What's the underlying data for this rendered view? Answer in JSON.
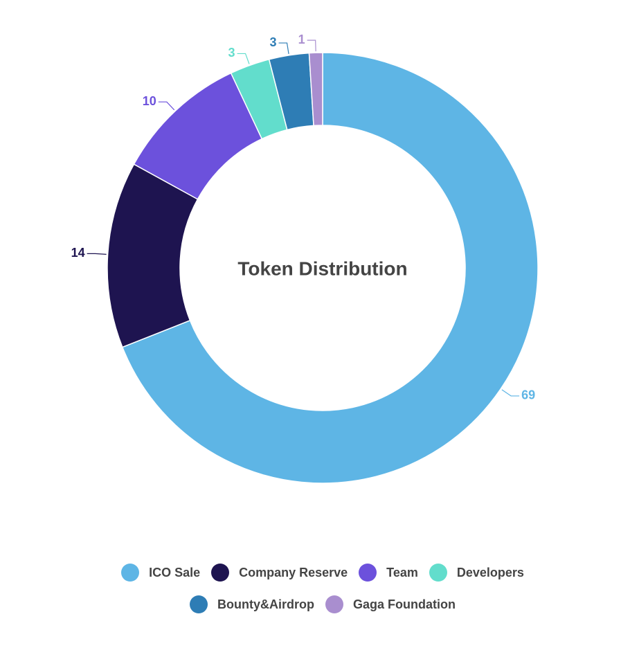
{
  "chart_data": {
    "type": "donut",
    "title": "Token Distribution",
    "categories": [
      "ICO Sale",
      "Company Reserve",
      "Team",
      "Developers",
      "Bounty&Airdrop",
      "Gaga Foundation"
    ],
    "values": [
      69,
      14,
      10,
      3,
      3,
      1
    ],
    "colors": [
      "#5eb5e5",
      "#1e1450",
      "#6c51dc",
      "#62ddcc",
      "#2e7db5",
      "#a98ecf"
    ],
    "legend": "bottom"
  }
}
